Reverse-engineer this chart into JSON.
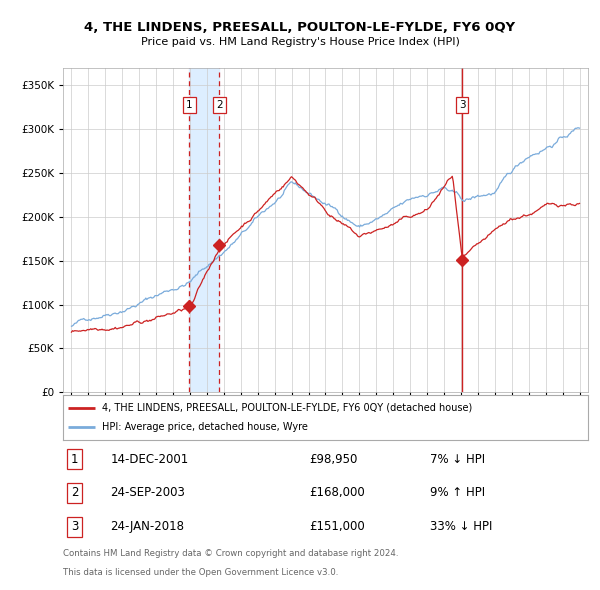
{
  "title": "4, THE LINDENS, PREESALL, POULTON-LE-FYLDE, FY6 0QY",
  "subtitle": "Price paid vs. HM Land Registry's House Price Index (HPI)",
  "legend_house": "4, THE LINDENS, PREESALL, POULTON-LE-FYLDE, FY6 0QY (detached house)",
  "legend_hpi": "HPI: Average price, detached house, Wyre",
  "footer1": "Contains HM Land Registry data © Crown copyright and database right 2024.",
  "footer2": "This data is licensed under the Open Government Licence v3.0.",
  "transactions": [
    {
      "num": 1,
      "date": "14-DEC-2001",
      "price": 98950,
      "price_str": "£98,950",
      "pct": "7%",
      "dir": "↓",
      "year": 2001.96
    },
    {
      "num": 2,
      "date": "24-SEP-2003",
      "price": 168000,
      "price_str": "£168,000",
      "pct": "9%",
      "dir": "↑",
      "year": 2003.73
    },
    {
      "num": 3,
      "date": "24-JAN-2018",
      "price": 151000,
      "price_str": "£151,000",
      "pct": "33%",
      "dir": "↓",
      "year": 2018.07
    }
  ],
  "hpi_color": "#7aabdb",
  "house_color": "#cc2222",
  "vline_color": "#cc2222",
  "vspan_color": "#ddeeff",
  "marker_color": "#cc2222",
  "grid_color": "#cccccc",
  "bg_color": "#f8f8f8",
  "ylim": [
    0,
    370000
  ],
  "yticks": [
    0,
    50000,
    100000,
    150000,
    200000,
    250000,
    300000,
    350000
  ],
  "xlim_start": 1994.5,
  "xlim_end": 2025.5,
  "xticks": [
    1995,
    1996,
    1997,
    1998,
    1999,
    2000,
    2001,
    2002,
    2003,
    2004,
    2005,
    2006,
    2007,
    2008,
    2009,
    2010,
    2011,
    2012,
    2013,
    2014,
    2015,
    2016,
    2017,
    2018,
    2019,
    2020,
    2021,
    2022,
    2023,
    2024,
    2025
  ]
}
